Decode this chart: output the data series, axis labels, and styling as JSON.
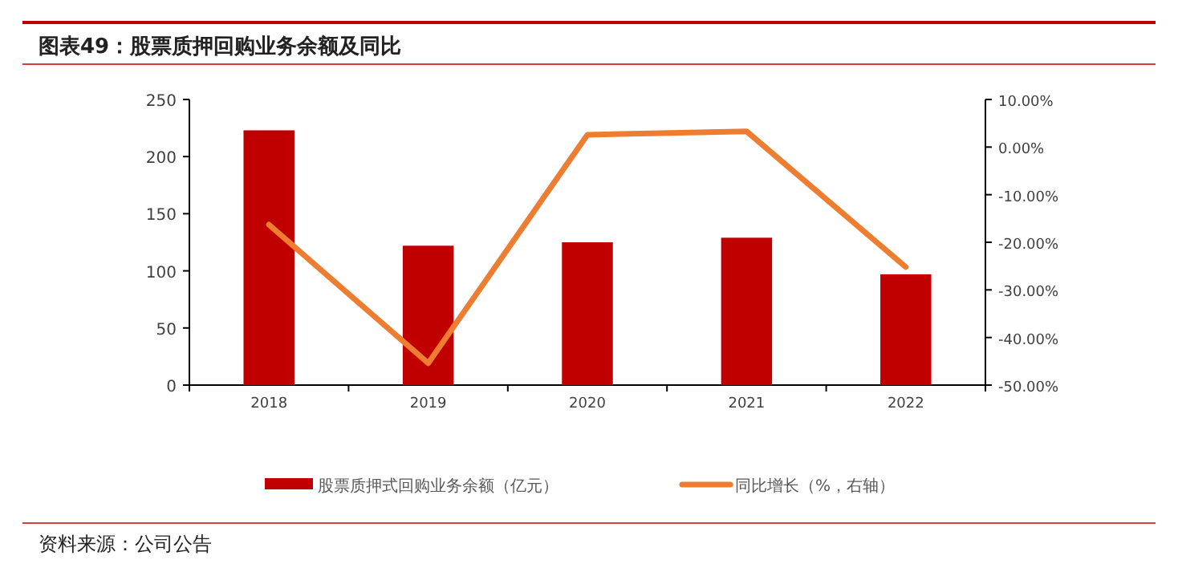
{
  "chart_data": {
    "type": "bar",
    "title": "图表49：股票质押回购业务余额及同比",
    "categories": [
      "2018",
      "2019",
      "2020",
      "2021",
      "2022"
    ],
    "series": [
      {
        "name": "股票质押式回购业务余额（亿元）",
        "color": "#c00000",
        "values": [
          223,
          122,
          125,
          129,
          97
        ]
      },
      {
        "name": "同比增长（%，右轴）",
        "type": "line",
        "axis": "y2",
        "color": "#ed7d31",
        "values": [
          -16.3,
          -45.4,
          2.6,
          3.3,
          -25.2
        ]
      }
    ],
    "ylim": [
      0,
      250
    ],
    "yticks": [
      0,
      50,
      100,
      150,
      200,
      250
    ],
    "y2lim": [
      -50,
      10
    ],
    "y2ticks": [
      {
        "value": -50,
        "label": "-50.00%"
      },
      {
        "value": -40,
        "label": "-40.00%"
      },
      {
        "value": -30,
        "label": "-30.00%"
      },
      {
        "value": -20,
        "label": "-20.00%"
      },
      {
        "value": -10,
        "label": "-10.00%"
      },
      {
        "value": 0,
        "label": "0.00%"
      },
      {
        "value": 10,
        "label": "10.00%"
      }
    ],
    "legend": "bottom",
    "grid": false,
    "annotations": [
      "资料来源：公司公告"
    ]
  }
}
